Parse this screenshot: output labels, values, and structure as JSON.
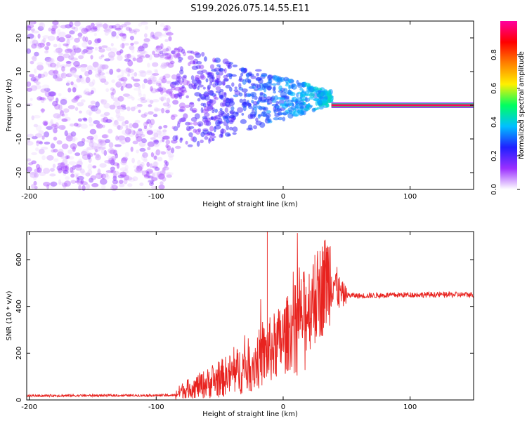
{
  "chart_data": [
    {
      "type": "heatmap",
      "title": "S199.2026.075.14.55.E11",
      "xlabel": "Height of straight line (km)",
      "ylabel": "Frequency (Hz)",
      "xlim": [
        -202,
        150
      ],
      "ylim": [
        -25,
        25
      ],
      "xticks": [
        -200,
        -100,
        0,
        100
      ],
      "yticks": [
        -20,
        -10,
        0,
        10,
        20
      ],
      "colorbar": {
        "label": "Normalized spectral amplitude",
        "range": [
          0,
          1
        ],
        "ticks": [
          0.0,
          0.2,
          0.4,
          0.6,
          0.8
        ],
        "colors": [
          "#ffffff",
          "#9b30ff",
          "#2020ff",
          "#00c0ff",
          "#00ff60",
          "#fff000",
          "#ff8000",
          "#ff0000",
          "#ff00a0"
        ]
      },
      "features": {
        "noise_region_km": [
          -202,
          -88
        ],
        "transition_region_km": [
          -88,
          38
        ],
        "tonal_line_start_km": 38,
        "tonal_line_frequency_hz": 0,
        "tonal_line_amplitude": 0.95
      }
    },
    {
      "type": "line",
      "xlabel": "Height of straight line (km)",
      "ylabel": "SNR (10 * v/v)",
      "xlim": [
        -202,
        150
      ],
      "ylim": [
        0,
        720
      ],
      "xticks": [
        -200,
        -100,
        0,
        100
      ],
      "yticks": [
        0,
        200,
        400,
        600
      ],
      "series": [
        {
          "name": "SNR",
          "color": "#e8231f",
          "x_key": [
            -202,
            -85,
            -80,
            -60,
            -40,
            -20,
            -13,
            0,
            15,
            30,
            37,
            45,
            60,
            100,
            150
          ],
          "y_key": [
            18,
            20,
            40,
            70,
            110,
            170,
            200,
            260,
            360,
            470,
            540,
            450,
            445,
            450,
            450
          ],
          "spikes": [
            {
              "x": -12.5,
              "y": 720
            },
            {
              "x": 34,
              "y": 650
            },
            {
              "x": 25,
              "y": 620
            }
          ]
        }
      ]
    }
  ]
}
